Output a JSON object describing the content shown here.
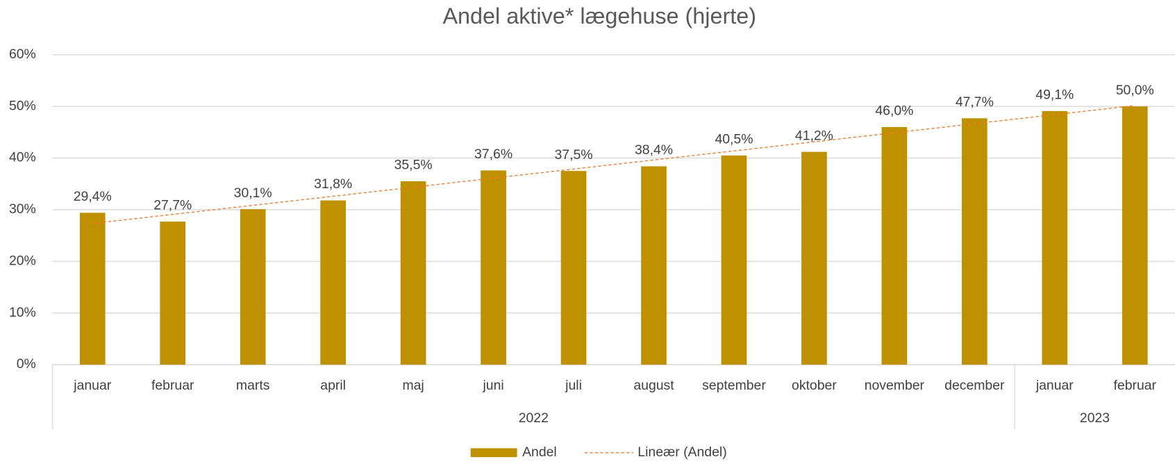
{
  "chart_data": {
    "type": "bar",
    "title": "Andel aktive* lægehuse (hjerte)",
    "categories": [
      "januar",
      "februar",
      "marts",
      "april",
      "maj",
      "juni",
      "juli",
      "august",
      "september",
      "oktober",
      "november",
      "december",
      "januar",
      "februar"
    ],
    "groups": [
      {
        "label": "2022",
        "count": 12
      },
      {
        "label": "2023",
        "count": 2
      }
    ],
    "series": [
      {
        "name": "Andel",
        "color": "#bf9000",
        "values": [
          29.4,
          27.7,
          30.1,
          31.8,
          35.5,
          37.6,
          37.5,
          38.4,
          40.5,
          41.2,
          46.0,
          47.7,
          49.1,
          50.0
        ],
        "value_labels": [
          "29,4%",
          "27,7%",
          "30,1%",
          "31,8%",
          "35,5%",
          "37,6%",
          "37,5%",
          "38,4%",
          "40,5%",
          "41,2%",
          "46,0%",
          "47,7%",
          "49,1%",
          "50,0%"
        ]
      }
    ],
    "trendline": {
      "name": "Lineær (Andel)",
      "type": "linear",
      "color": "#ed7d31"
    },
    "ylim": [
      0,
      60
    ],
    "yticks": [
      {
        "value": 0,
        "label": "0%"
      },
      {
        "value": 10,
        "label": "10%"
      },
      {
        "value": 20,
        "label": "20%"
      },
      {
        "value": 30,
        "label": "30%"
      },
      {
        "value": 40,
        "label": "40%"
      },
      {
        "value": 50,
        "label": "50%"
      },
      {
        "value": 60,
        "label": "60%"
      }
    ],
    "grid": true,
    "legend": "bottom"
  }
}
